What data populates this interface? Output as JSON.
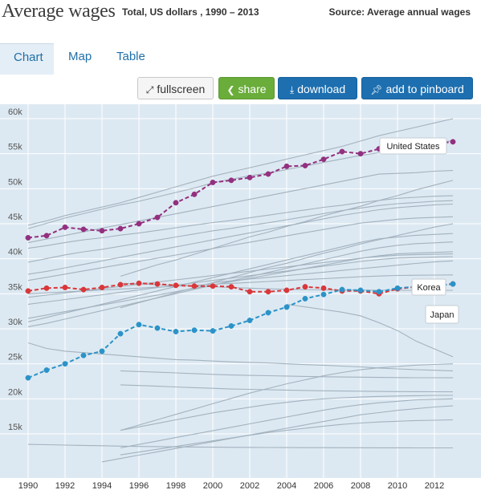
{
  "header": {
    "title": "Average wages",
    "subtitle": "Total, US dollars , 1990 – 2013",
    "source": "Source: Average annual wages"
  },
  "tabs": [
    {
      "label": "Chart",
      "active": true
    },
    {
      "label": "Map",
      "active": false
    },
    {
      "label": "Table",
      "active": false
    }
  ],
  "toolbar": {
    "fullscreen_label": "fullscreen",
    "share_label": "share",
    "download_label": "download",
    "pinboard_label": "add to pinboard"
  },
  "colors": {
    "plot_background": "#dde9f2",
    "grid": "#ffffff",
    "background_lines": "#a2b2bf",
    "united_states": "#93307f",
    "korea": "#d9373a",
    "japan": "#2b93c8"
  },
  "chart_data": {
    "type": "line",
    "title": "",
    "xlabel": "",
    "ylabel": "",
    "x_ticks": [
      1990,
      1992,
      1994,
      1996,
      1998,
      2000,
      2002,
      2004,
      2006,
      2008,
      2010,
      2012
    ],
    "y_ticks": [
      {
        "value": 15000,
        "label": "15k"
      },
      {
        "value": 20000,
        "label": "20k"
      },
      {
        "value": 25000,
        "label": "25k"
      },
      {
        "value": 30000,
        "label": "30k"
      },
      {
        "value": 35000,
        "label": "35k"
      },
      {
        "value": 40000,
        "label": "40k"
      },
      {
        "value": 45000,
        "label": "45k"
      },
      {
        "value": 50000,
        "label": "50k"
      },
      {
        "value": 55000,
        "label": "55k"
      },
      {
        "value": 60000,
        "label": "60k"
      }
    ],
    "xlim": [
      1989.7,
      2013.7
    ],
    "ylim": [
      11000,
      61500
    ],
    "grid": true,
    "legend": "none",
    "highlighted_series": [
      {
        "name": "United States",
        "label": "United States",
        "color_key": "united_states",
        "x": [
          1990,
          1991,
          1992,
          1993,
          1994,
          1995,
          1996,
          1997,
          1998,
          1999,
          2000,
          2001,
          2002,
          2003,
          2004,
          2005,
          2006,
          2007,
          2008,
          2009,
          2010,
          2011,
          2012,
          2013
        ],
        "values": [
          43000,
          43300,
          44500,
          44200,
          44000,
          44300,
          45000,
          45900,
          48000,
          49200,
          50900,
          51200,
          51600,
          52100,
          53200,
          53300,
          54200,
          55300,
          55000,
          55700,
          56200,
          56300,
          56400,
          56700
        ]
      },
      {
        "name": "Korea",
        "label": "Korea",
        "color_key": "korea",
        "x": [
          1990,
          1991,
          1992,
          1993,
          1994,
          1995,
          1996,
          1997,
          1998,
          1999,
          2000,
          2001,
          2002,
          2003,
          2004,
          2005,
          2006,
          2007,
          2008,
          2009,
          2010,
          2011,
          2012,
          2013
        ],
        "values": [
          35400,
          35800,
          35900,
          35600,
          35900,
          36300,
          36500,
          36400,
          36200,
          36100,
          36100,
          36000,
          35300,
          35300,
          35500,
          36000,
          35800,
          35400,
          35400,
          35000,
          35700,
          36000,
          36200,
          36400
        ]
      },
      {
        "name": "Japan",
        "label": "Japan",
        "color_key": "japan",
        "x": [
          1990,
          1991,
          1992,
          1993,
          1994,
          1995,
          1996,
          1997,
          1998,
          1999,
          2000,
          2001,
          2002,
          2003,
          2004,
          2005,
          2006,
          2007,
          2008,
          2009,
          2010,
          2011,
          2012,
          2013
        ],
        "values": [
          23000,
          24100,
          25000,
          26200,
          26800,
          29300,
          30600,
          30100,
          29600,
          29800,
          29700,
          30400,
          31200,
          32300,
          33100,
          34300,
          34900,
          35600,
          35500,
          35300,
          35800,
          36000,
          36100,
          36400
        ]
      }
    ],
    "background_series": [
      {
        "x": [
          1990,
          2013
        ],
        "values": [
          44800,
          60000
        ],
        "shape": [
          0,
          0.04,
          0.09,
          0.13,
          0.17,
          0.21,
          0.26,
          0.31,
          0.36,
          0.41,
          0.46,
          0.5,
          0.54,
          0.58,
          0.62,
          0.66,
          0.7,
          0.74,
          0.79,
          0.84,
          0.88,
          0.92,
          0.96,
          1
        ]
      },
      {
        "x": [
          1990,
          2013
        ],
        "values": [
          44300,
          56900
        ],
        "shape": [
          0,
          0.06,
          0.12,
          0.17,
          0.22,
          0.27,
          0.31,
          0.36,
          0.41,
          0.46,
          0.52,
          0.56,
          0.6,
          0.63,
          0.67,
          0.71,
          0.75,
          0.79,
          0.83,
          0.86,
          0.9,
          0.93,
          0.96,
          1
        ]
      },
      {
        "x": [
          1990,
          2013
        ],
        "values": [
          42300,
          52600
        ],
        "shape": [
          0,
          0.05,
          0.1,
          0.15,
          0.2,
          0.25,
          0.3,
          0.35,
          0.4,
          0.45,
          0.5,
          0.55,
          0.6,
          0.65,
          0.7,
          0.75,
          0.8,
          0.85,
          0.9,
          0.95,
          0.96,
          0.97,
          0.99,
          1
        ]
      },
      {
        "x": [
          1995,
          2013
        ],
        "values": [
          37500,
          51200
        ],
        "shape": [
          0,
          0.06,
          0.12,
          0.17,
          0.23,
          0.29,
          0.35,
          0.41,
          0.46,
          0.52,
          0.57,
          0.63,
          0.68,
          0.73,
          0.79,
          0.84,
          0.9,
          0.95,
          1
        ]
      },
      {
        "x": [
          1990,
          2013
        ],
        "values": [
          41500,
          49000
        ],
        "shape": [
          0,
          0.05,
          0.11,
          0.16,
          0.2,
          0.25,
          0.29,
          0.34,
          0.39,
          0.44,
          0.49,
          0.53,
          0.58,
          0.63,
          0.68,
          0.73,
          0.78,
          0.82,
          0.87,
          0.91,
          0.95,
          0.97,
          0.99,
          1
        ]
      },
      {
        "x": [
          1990,
          2013
        ],
        "values": [
          39500,
          48300
        ],
        "shape": [
          0,
          0.06,
          0.12,
          0.17,
          0.21,
          0.26,
          0.31,
          0.36,
          0.41,
          0.46,
          0.51,
          0.55,
          0.6,
          0.64,
          0.69,
          0.74,
          0.79,
          0.84,
          0.88,
          0.92,
          0.95,
          0.97,
          0.99,
          1
        ]
      },
      {
        "x": [
          1990,
          2013
        ],
        "values": [
          37800,
          47800
        ],
        "shape": [
          0,
          0.04,
          0.09,
          0.14,
          0.19,
          0.24,
          0.29,
          0.34,
          0.39,
          0.44,
          0.49,
          0.54,
          0.59,
          0.64,
          0.69,
          0.74,
          0.79,
          0.84,
          0.88,
          0.92,
          0.95,
          0.97,
          0.99,
          1
        ]
      },
      {
        "x": [
          1990,
          2013
        ],
        "values": [
          36900,
          46000
        ],
        "shape": [
          0,
          0.05,
          0.1,
          0.15,
          0.2,
          0.25,
          0.3,
          0.35,
          0.4,
          0.45,
          0.5,
          0.55,
          0.6,
          0.65,
          0.7,
          0.75,
          0.8,
          0.85,
          0.9,
          0.93,
          0.96,
          0.98,
          0.99,
          1
        ]
      },
      {
        "x": [
          1995,
          2013
        ],
        "values": [
          33000,
          45000
        ],
        "shape": [
          0,
          0.06,
          0.12,
          0.18,
          0.24,
          0.3,
          0.36,
          0.42,
          0.48,
          0.53,
          0.59,
          0.65,
          0.7,
          0.76,
          0.81,
          0.86,
          0.91,
          0.96,
          1
        ]
      },
      {
        "x": [
          1990,
          2013
        ],
        "values": [
          31000,
          43600
        ],
        "shape": [
          0,
          0.05,
          0.1,
          0.15,
          0.2,
          0.25,
          0.3,
          0.35,
          0.4,
          0.45,
          0.5,
          0.55,
          0.6,
          0.65,
          0.7,
          0.75,
          0.8,
          0.85,
          0.9,
          0.94,
          0.96,
          0.98,
          0.99,
          1
        ]
      },
      {
        "x": [
          1990,
          2013
        ],
        "values": [
          30300,
          42400
        ],
        "shape": [
          0,
          0.04,
          0.09,
          0.14,
          0.19,
          0.24,
          0.29,
          0.34,
          0.39,
          0.44,
          0.49,
          0.54,
          0.59,
          0.64,
          0.69,
          0.74,
          0.79,
          0.84,
          0.89,
          0.93,
          0.96,
          0.98,
          0.99,
          1
        ]
      },
      {
        "x": [
          1990,
          2013
        ],
        "values": [
          31500,
          41000
        ],
        "shape": [
          0,
          0.05,
          0.1,
          0.15,
          0.2,
          0.25,
          0.3,
          0.35,
          0.4,
          0.45,
          0.5,
          0.55,
          0.6,
          0.65,
          0.7,
          0.75,
          0.8,
          0.85,
          0.9,
          0.94,
          0.97,
          0.98,
          0.99,
          1
        ]
      },
      {
        "x": [
          1990,
          2013
        ],
        "values": [
          34500,
          40700
        ],
        "shape": [
          0,
          0.05,
          0.1,
          0.15,
          0.2,
          0.25,
          0.3,
          0.35,
          0.4,
          0.45,
          0.5,
          0.55,
          0.6,
          0.65,
          0.7,
          0.75,
          0.8,
          0.85,
          0.9,
          0.94,
          0.97,
          0.98,
          0.99,
          1
        ]
      },
      {
        "x": [
          1990,
          2013
        ],
        "values": [
          33500,
          40300
        ],
        "shape": [
          0,
          0.05,
          0.1,
          0.15,
          0.2,
          0.25,
          0.3,
          0.35,
          0.4,
          0.45,
          0.5,
          0.55,
          0.6,
          0.65,
          0.7,
          0.75,
          0.8,
          0.85,
          0.9,
          0.94,
          0.97,
          0.98,
          0.99,
          1
        ]
      },
      {
        "x": [
          1990,
          2013
        ],
        "values": [
          35000,
          37700
        ],
        "shape": [
          0,
          0.05,
          0.1,
          0.15,
          0.2,
          0.25,
          0.3,
          0.35,
          0.4,
          0.45,
          0.5,
          0.55,
          0.6,
          0.65,
          0.7,
          0.75,
          0.8,
          0.85,
          0.9,
          0.94,
          0.97,
          0.98,
          0.99,
          1
        ]
      },
      {
        "x": [
          2000,
          2013
        ],
        "values": [
          36600,
          39700
        ],
        "shape": [
          0,
          0.08,
          0.16,
          0.24,
          0.32,
          0.4,
          0.48,
          0.56,
          0.64,
          0.72,
          0.8,
          0.88,
          0.95,
          1
        ]
      },
      {
        "x": [
          1995,
          2013
        ],
        "values": [
          36500,
          35500
        ],
        "shape": [
          0,
          0.1,
          0.2,
          0.3,
          0.4,
          0.5,
          0.6,
          0.7,
          0.8,
          0.85,
          0.9,
          0.95,
          0.97,
          0.98,
          0.99,
          1,
          1,
          1,
          1
        ]
      },
      {
        "x": [
          2004,
          2013
        ],
        "values": [
          33500,
          26000
        ],
        "shape": [
          0,
          0.05,
          0.1,
          0.15,
          0.22,
          0.35,
          0.5,
          0.7,
          0.85,
          1
        ]
      },
      {
        "x": [
          1990,
          2013
        ],
        "values": [
          28000,
          24000
        ],
        "shape": [
          0,
          0.2,
          0.3,
          0.35,
          0.4,
          0.45,
          0.5,
          0.55,
          0.6,
          0.62,
          0.65,
          0.68,
          0.7,
          0.72,
          0.75,
          0.78,
          0.8,
          0.83,
          0.86,
          0.9,
          0.93,
          0.96,
          0.98,
          1
        ]
      },
      {
        "x": [
          1995,
          2013
        ],
        "values": [
          24000,
          23000
        ],
        "shape": [
          0,
          0.1,
          0.2,
          0.3,
          0.4,
          0.5,
          0.6,
          0.65,
          0.7,
          0.75,
          0.8,
          0.85,
          0.88,
          0.91,
          0.94,
          0.96,
          0.98,
          0.99,
          1
        ]
      },
      {
        "x": [
          1995,
          2013
        ],
        "values": [
          22000,
          21000
        ],
        "shape": [
          0,
          0.1,
          0.2,
          0.3,
          0.4,
          0.5,
          0.6,
          0.65,
          0.7,
          0.75,
          0.8,
          0.85,
          0.88,
          0.91,
          0.94,
          0.96,
          0.98,
          0.99,
          1
        ]
      },
      {
        "x": [
          1990,
          2013
        ],
        "values": [
          13500,
          13000
        ],
        "shape": [
          0,
          0.1,
          0.2,
          0.3,
          0.4,
          0.5,
          0.6,
          0.65,
          0.7,
          0.75,
          0.8,
          0.85,
          0.88,
          0.9,
          0.92,
          0.94,
          0.95,
          0.96,
          0.97,
          0.98,
          0.99,
          1,
          1,
          1
        ]
      },
      {
        "x": [
          1995,
          2013
        ],
        "values": [
          15500,
          25000
        ],
        "shape": [
          0,
          0.08,
          0.16,
          0.24,
          0.32,
          0.4,
          0.48,
          0.56,
          0.63,
          0.7,
          0.76,
          0.82,
          0.87,
          0.91,
          0.94,
          0.96,
          0.98,
          0.99,
          1
        ]
      },
      {
        "x": [
          1995,
          2013
        ],
        "values": [
          15500,
          20500
        ],
        "shape": [
          0,
          0.1,
          0.2,
          0.3,
          0.4,
          0.5,
          0.58,
          0.66,
          0.74,
          0.8,
          0.86,
          0.9,
          0.93,
          0.95,
          0.97,
          0.98,
          0.99,
          1,
          1
        ]
      },
      {
        "x": [
          1995,
          2013
        ],
        "values": [
          13000,
          20000
        ],
        "shape": [
          0,
          0.07,
          0.14,
          0.21,
          0.28,
          0.35,
          0.42,
          0.49,
          0.56,
          0.63,
          0.7,
          0.77,
          0.83,
          0.88,
          0.92,
          0.95,
          0.98,
          0.99,
          1
        ]
      },
      {
        "x": [
          1994,
          2013
        ],
        "values": [
          11000,
          19000
        ],
        "shape": [
          0,
          0.06,
          0.12,
          0.18,
          0.24,
          0.3,
          0.36,
          0.42,
          0.48,
          0.54,
          0.6,
          0.66,
          0.72,
          0.78,
          0.84,
          0.88,
          0.92,
          0.95,
          0.98,
          1
        ]
      },
      {
        "x": [
          1995,
          2013
        ],
        "values": [
          12000,
          17000
        ],
        "shape": [
          0,
          0.08,
          0.16,
          0.24,
          0.32,
          0.4,
          0.48,
          0.56,
          0.64,
          0.7,
          0.76,
          0.82,
          0.87,
          0.91,
          0.94,
          0.96,
          0.98,
          0.99,
          1
        ]
      }
    ]
  }
}
